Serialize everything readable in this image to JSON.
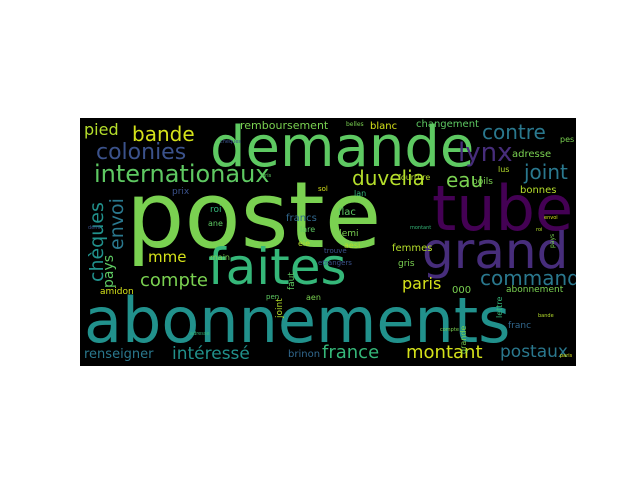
{
  "palette": {
    "green_light": "#7ad151",
    "green": "#5ec962",
    "green_mid": "#35b779",
    "teal": "#21918c",
    "teal_dark": "#2a788e",
    "blue": "#31688e",
    "indigo": "#3b528b",
    "purple": "#472d7b",
    "violet": "#440154",
    "yellow": "#b5de2b",
    "yellow_light": "#d5e21a",
    "cyan": "#1fa187"
  },
  "words": {
    "poste": "poste",
    "abonnements": "abonnements",
    "demande": "demande",
    "tube": "tube",
    "faites": "faites",
    "grand": "grand",
    "internationaux": "internationaux",
    "colonies": "colonies",
    "lynx": "lynx",
    "bande": "bande",
    "pied": "pied",
    "contre": "contre",
    "duvelia": "duvelia",
    "eau": "eau",
    "joint": "joint",
    "commande": "commande",
    "cheques": "chèques",
    "envoi": "envoi",
    "pays": "pays",
    "compte": "compte",
    "mme": "mme",
    "paris": "paris",
    "france": "france",
    "montant": "montant",
    "postaux": "postaux",
    "interesse": "intéressé",
    "renseigner": "renseigner",
    "remboursement": "remboursement",
    "blanc": "blanc",
    "changement": "changement",
    "adresse": "adresse",
    "bonnes": "bonnes",
    "francs": "francs",
    "flac": "flac",
    "demi": "demi",
    "femmes": "femmes",
    "gris": "gris",
    "ooo": "000",
    "abonnement": "abonnement",
    "amidon": "amidon",
    "brinon": "brinon",
    "main": "main",
    "fourrure": "fourrure",
    "roi": "roi",
    "ane": "ane",
    "prix": "prix",
    "lare": "lare",
    "eie": "eie",
    "aesi": "aesi",
    "aen": "aen",
    "faut": "faut",
    "pen": "pen",
    "etrangers": "etrangers",
    "poils": "poils",
    "lus": "lus",
    "franc": "franc",
    "joint2": "joint",
    "pes": "pes",
    "pays2": "pays",
    "belles": "belles",
    "grande": "grande",
    "lan": "lan",
    "trouve": "trouve",
    "sol": "sol",
    "lettre": "lettre"
  }
}
